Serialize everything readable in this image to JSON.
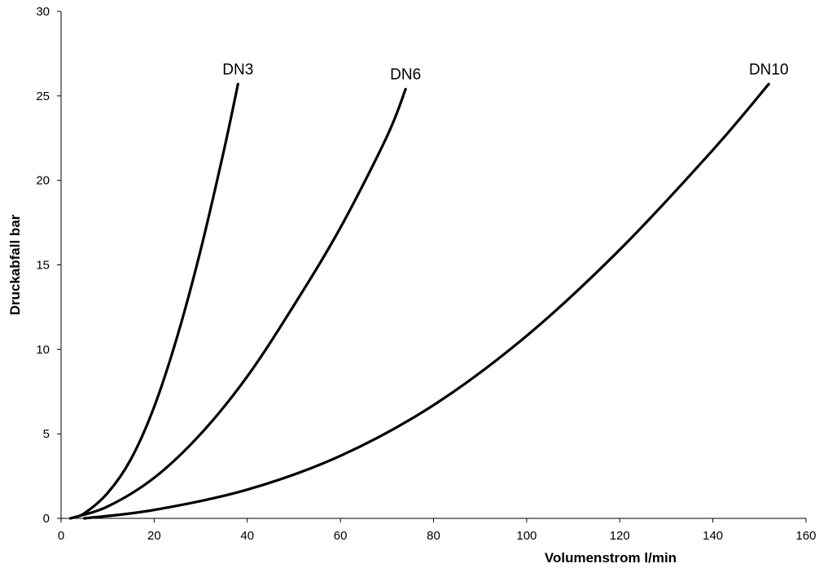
{
  "chart_data": {
    "type": "line",
    "title": "",
    "xlabel": "Volumenstrom l/min",
    "ylabel": "Druckabfall bar",
    "xlim": [
      0,
      160
    ],
    "ylim": [
      0,
      30
    ],
    "x_ticks": [
      0,
      20,
      40,
      60,
      80,
      100,
      120,
      140,
      160
    ],
    "y_ticks": [
      0,
      5,
      10,
      15,
      20,
      25,
      30
    ],
    "grid": false,
    "legend": "none",
    "line_color": "#000000",
    "series": [
      {
        "name": "DN3",
        "points": [
          [
            2,
            0.0
          ],
          [
            5,
            0.3
          ],
          [
            10,
            1.5
          ],
          [
            15,
            3.5
          ],
          [
            20,
            6.6
          ],
          [
            25,
            10.8
          ],
          [
            30,
            15.9
          ],
          [
            35,
            21.8
          ],
          [
            38,
            25.7
          ]
        ]
      },
      {
        "name": "DN6",
        "points": [
          [
            2,
            0.0
          ],
          [
            10,
            0.7
          ],
          [
            20,
            2.4
          ],
          [
            30,
            5.0
          ],
          [
            40,
            8.4
          ],
          [
            50,
            12.6
          ],
          [
            60,
            17.2
          ],
          [
            70,
            22.6
          ],
          [
            74,
            25.4
          ]
        ]
      },
      {
        "name": "DN10",
        "points": [
          [
            5,
            0.0
          ],
          [
            20,
            0.5
          ],
          [
            40,
            1.7
          ],
          [
            60,
            3.7
          ],
          [
            80,
            6.7
          ],
          [
            100,
            10.8
          ],
          [
            120,
            15.9
          ],
          [
            140,
            21.8
          ],
          [
            152,
            25.7
          ]
        ]
      }
    ]
  }
}
